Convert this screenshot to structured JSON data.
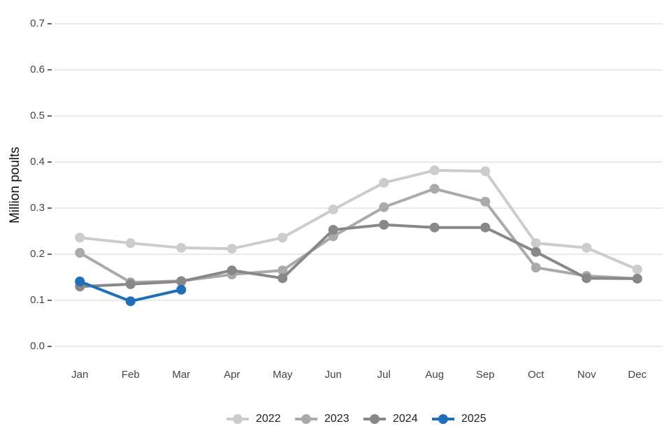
{
  "chart_data": {
    "type": "line",
    "ylabel": "Million poults",
    "categories": [
      "Jan",
      "Feb",
      "Mar",
      "Apr",
      "May",
      "Jun",
      "Jul",
      "Aug",
      "Sep",
      "Oct",
      "Nov",
      "Dec"
    ],
    "series": [
      {
        "name": "2022",
        "color": "#cccccc",
        "values": [
          0.236,
          0.224,
          0.214,
          0.212,
          0.236,
          0.297,
          0.355,
          0.382,
          0.38,
          0.224,
          0.214,
          0.167
        ]
      },
      {
        "name": "2023",
        "color": "#aaaaaa",
        "values": [
          0.203,
          0.139,
          0.142,
          0.156,
          0.165,
          0.239,
          0.302,
          0.342,
          0.314,
          0.171,
          0.153,
          0.147
        ]
      },
      {
        "name": "2024",
        "color": "#888888",
        "values": [
          0.13,
          0.135,
          0.141,
          0.165,
          0.148,
          0.253,
          0.264,
          0.258,
          0.258,
          0.205,
          0.148,
          0.147
        ]
      },
      {
        "name": "2025",
        "color": "#1f6eb8",
        "values": [
          0.141,
          0.098,
          0.123,
          null,
          null,
          null,
          null,
          null,
          null,
          null,
          null,
          null
        ]
      }
    ],
    "ylim": [
      0,
      0.7
    ],
    "yticks": [
      {
        "value": 0,
        "label": "0.0"
      },
      0.1,
      0.2,
      0.3,
      0.4,
      0.5,
      0.6,
      0.7
    ],
    "grid": true,
    "legend": "bottom"
  }
}
